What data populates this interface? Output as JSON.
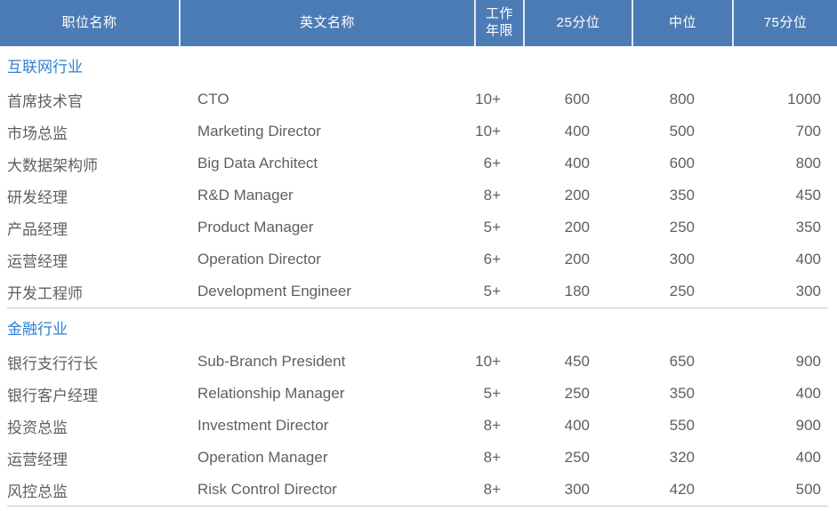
{
  "colors": {
    "header_bg": "#4C7CB6",
    "header_text": "#FFFFFF",
    "header_divider": "#E3E9F2",
    "section_title_text": "#2E7FD2",
    "body_text": "#5E5F61",
    "row_divider": "#C9C9C9"
  },
  "table": {
    "columns": [
      "职位名称",
      "英文名称",
      "工作年限",
      "25分位",
      "中位",
      "75分位"
    ],
    "sections": [
      {
        "title": "互联网行业",
        "rows": [
          {
            "position": "首席技术官",
            "english": "CTO",
            "years": "10+",
            "p25": "600",
            "median": "800",
            "p75": "1000"
          },
          {
            "position": "市场总监",
            "english": "Marketing Director",
            "years": "10+",
            "p25": "400",
            "median": "500",
            "p75": "700"
          },
          {
            "position": "大数据架构师",
            "english": "Big Data Architect",
            "years": "6+",
            "p25": "400",
            "median": "600",
            "p75": "800"
          },
          {
            "position": "研发经理",
            "english": "R&D Manager",
            "years": "8+",
            "p25": "200",
            "median": "350",
            "p75": "450"
          },
          {
            "position": "产品经理",
            "english": "Product Manager",
            "years": "5+",
            "p25": "200",
            "median": "250",
            "p75": "350"
          },
          {
            "position": "运营经理",
            "english": "Operation Director",
            "years": "6+",
            "p25": "200",
            "median": "300",
            "p75": "400"
          },
          {
            "position": "开发工程师",
            "english": "Development Engineer",
            "years": "5+",
            "p25": "180",
            "median": "250",
            "p75": "300"
          }
        ]
      },
      {
        "title": "金融行业",
        "rows": [
          {
            "position": "银行支行行长",
            "english": "Sub-Branch President",
            "years": "10+",
            "p25": "450",
            "median": "650",
            "p75": "900"
          },
          {
            "position": "银行客户经理",
            "english": "Relationship Manager",
            "years": "5+",
            "p25": "250",
            "median": "350",
            "p75": "400"
          },
          {
            "position": "投资总监",
            "english": "Investment Director",
            "years": "8+",
            "p25": "400",
            "median": "550",
            "p75": "900"
          },
          {
            "position": "运营经理",
            "english": "Operation Manager",
            "years": "8+",
            "p25": "250",
            "median": "320",
            "p75": "400"
          },
          {
            "position": "风控总监",
            "english": "Risk Control Director",
            "years": "8+",
            "p25": "300",
            "median": "420",
            "p75": "500"
          }
        ]
      }
    ]
  },
  "chart_data": {
    "type": "table",
    "columns": [
      "职位名称",
      "英文名称",
      "工作年限",
      "25分位",
      "中位",
      "75分位"
    ],
    "groups": [
      {
        "group": "互联网行业",
        "rows": [
          [
            "首席技术官",
            "CTO",
            "10+",
            600,
            800,
            1000
          ],
          [
            "市场总监",
            "Marketing Director",
            "10+",
            400,
            500,
            700
          ],
          [
            "大数据架构师",
            "Big Data Architect",
            "6+",
            400,
            600,
            800
          ],
          [
            "研发经理",
            "R&D Manager",
            "8+",
            200,
            350,
            450
          ],
          [
            "产品经理",
            "Product Manager",
            "5+",
            200,
            250,
            350
          ],
          [
            "运营经理",
            "Operation Director",
            "6+",
            200,
            300,
            400
          ],
          [
            "开发工程师",
            "Development Engineer",
            "5+",
            180,
            250,
            300
          ]
        ]
      },
      {
        "group": "金融行业",
        "rows": [
          [
            "银行支行行长",
            "Sub-Branch President",
            "10+",
            450,
            650,
            900
          ],
          [
            "银行客户经理",
            "Relationship Manager",
            "5+",
            250,
            350,
            400
          ],
          [
            "投资总监",
            "Investment Director",
            "8+",
            400,
            550,
            900
          ],
          [
            "运营经理",
            "Operation Manager",
            "8+",
            250,
            320,
            400
          ],
          [
            "风控总监",
            "Risk Control Director",
            "8+",
            300,
            420,
            500
          ]
        ]
      }
    ]
  }
}
